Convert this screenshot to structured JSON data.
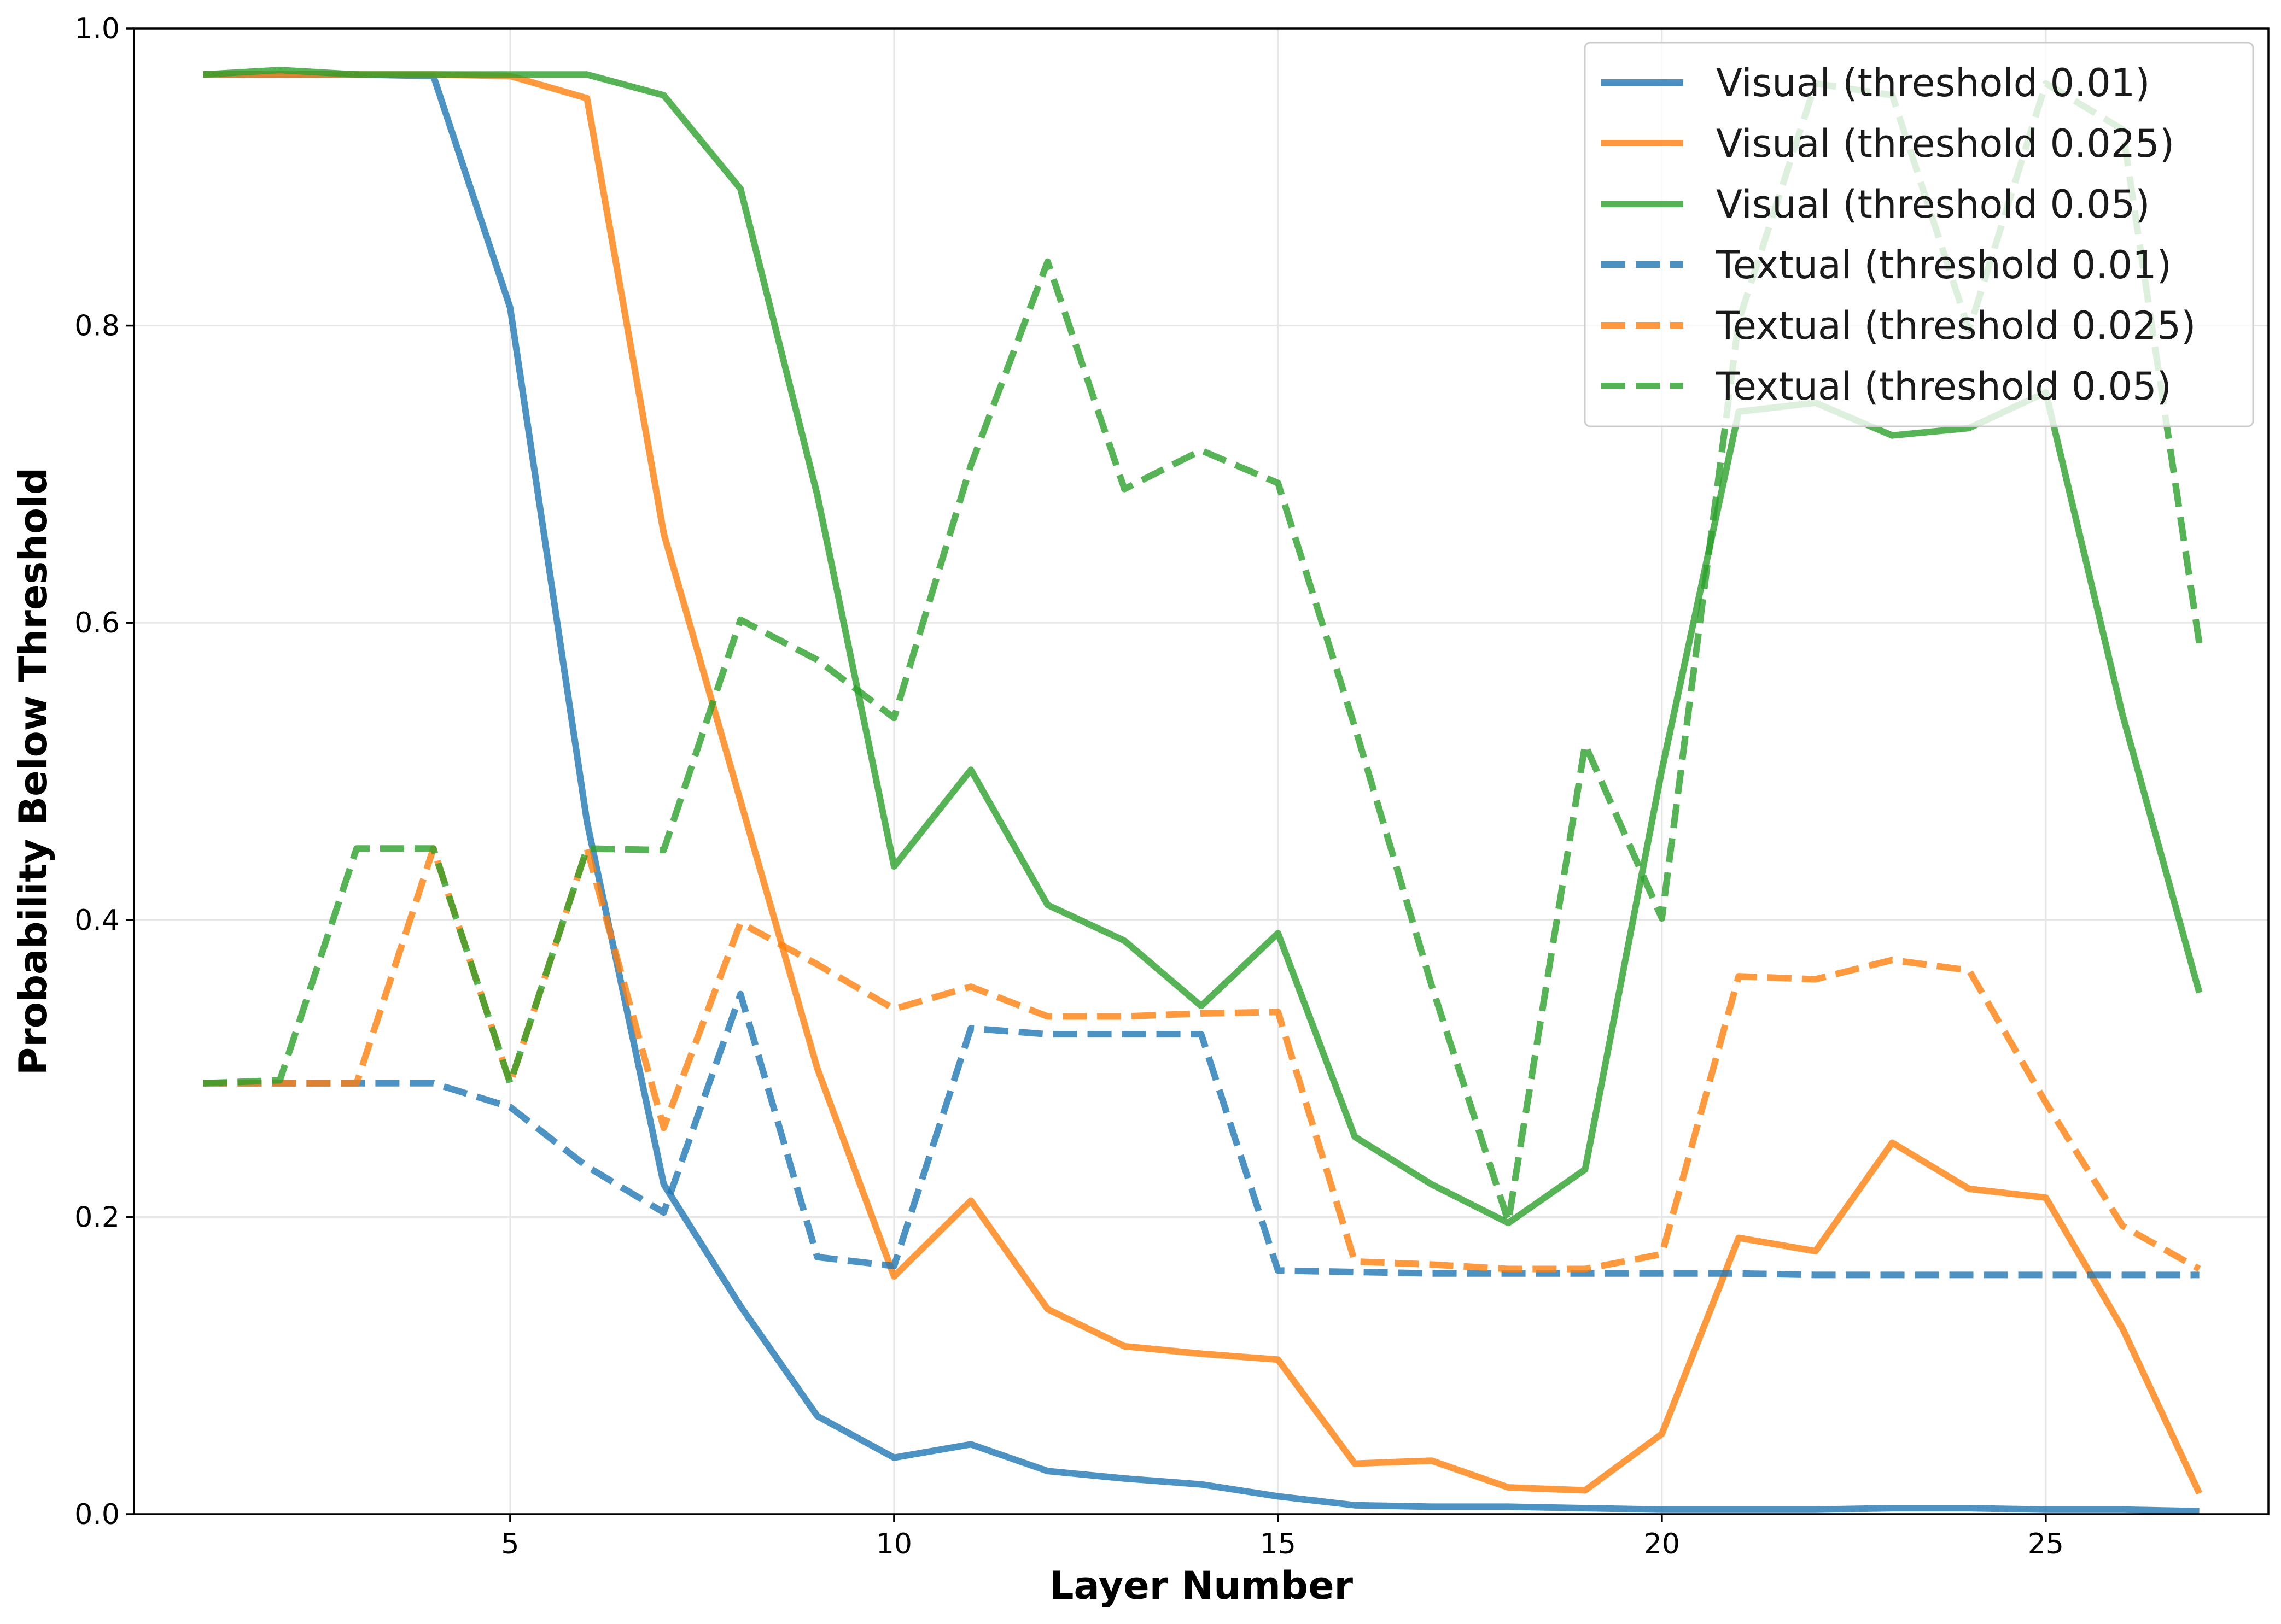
{
  "chart_data": {
    "type": "line",
    "title": "",
    "xlabel": "Layer Number",
    "ylabel": "Probability Below Threshold",
    "xlim": [
      0.1,
      27.9
    ],
    "ylim": [
      0.0,
      1.0
    ],
    "x_ticks": [
      5,
      10,
      15,
      20,
      25
    ],
    "y_ticks": [
      0.0,
      0.2,
      0.4,
      0.6,
      0.8,
      1.0
    ],
    "x_tick_labels": [
      "5",
      "10",
      "15",
      "20",
      "25"
    ],
    "y_tick_labels": [
      "0.0",
      "0.2",
      "0.4",
      "0.6",
      "0.8",
      "1.0"
    ],
    "grid": true,
    "legend_position": "top-right",
    "x": [
      1,
      2,
      3,
      4,
      5,
      6,
      7,
      8,
      9,
      10,
      11,
      12,
      13,
      14,
      15,
      16,
      17,
      18,
      19,
      20,
      21,
      22,
      23,
      24,
      25,
      26,
      27
    ],
    "series": [
      {
        "name": "Visual (threshold 0.01)",
        "color": "#1f77b4",
        "dash": "solid",
        "values": [
          0.969,
          0.969,
          0.969,
          0.968,
          0.812,
          0.466,
          0.222,
          0.14,
          0.066,
          0.038,
          0.047,
          0.029,
          0.024,
          0.02,
          0.012,
          0.006,
          0.005,
          0.005,
          0.004,
          0.003,
          0.003,
          0.003,
          0.004,
          0.004,
          0.003,
          0.003,
          0.002
        ]
      },
      {
        "name": "Visual (threshold 0.025)",
        "color": "#ff7f0e",
        "dash": "solid",
        "values": [
          0.969,
          0.969,
          0.969,
          0.969,
          0.968,
          0.953,
          0.66,
          0.48,
          0.3,
          0.16,
          0.211,
          0.138,
          0.113,
          0.108,
          0.104,
          0.034,
          0.036,
          0.018,
          0.016,
          0.054,
          0.186,
          0.177,
          0.25,
          0.219,
          0.213,
          0.125,
          0.014
        ]
      },
      {
        "name": "Visual (threshold 0.05)",
        "color": "#2ca02c",
        "dash": "solid",
        "values": [
          0.969,
          0.972,
          0.969,
          0.969,
          0.969,
          0.969,
          0.955,
          0.892,
          0.686,
          0.436,
          0.501,
          0.41,
          0.386,
          0.342,
          0.391,
          0.254,
          0.222,
          0.196,
          0.232,
          0.501,
          0.742,
          0.748,
          0.726,
          0.731,
          0.755,
          0.538,
          0.351
        ]
      },
      {
        "name": "Textual (threshold 0.01)",
        "color": "#1f77b4",
        "dash": "dashed",
        "values": [
          0.29,
          0.29,
          0.29,
          0.29,
          0.274,
          0.234,
          0.203,
          0.35,
          0.173,
          0.167,
          0.327,
          0.323,
          0.323,
          0.323,
          0.164,
          0.163,
          0.162,
          0.162,
          0.162,
          0.162,
          0.162,
          0.161,
          0.161,
          0.161,
          0.161,
          0.161,
          0.161
        ]
      },
      {
        "name": "Textual (threshold 0.025)",
        "color": "#ff7f0e",
        "dash": "dashed",
        "values": [
          0.29,
          0.29,
          0.29,
          0.448,
          0.29,
          0.448,
          0.26,
          0.398,
          0.37,
          0.34,
          0.355,
          0.335,
          0.335,
          0.337,
          0.338,
          0.17,
          0.168,
          0.165,
          0.165,
          0.175,
          0.362,
          0.36,
          0.373,
          0.366,
          0.277,
          0.194,
          0.165
        ]
      },
      {
        "name": "Textual (threshold 0.05)",
        "color": "#2ca02c",
        "dash": "dashed",
        "values": [
          0.29,
          0.292,
          0.448,
          0.448,
          0.29,
          0.448,
          0.447,
          0.602,
          0.575,
          0.536,
          0.706,
          0.843,
          0.69,
          0.716,
          0.694,
          0.53,
          0.356,
          0.197,
          0.518,
          0.401,
          0.803,
          0.963,
          0.955,
          0.797,
          0.963,
          0.932,
          0.586
        ]
      }
    ]
  }
}
